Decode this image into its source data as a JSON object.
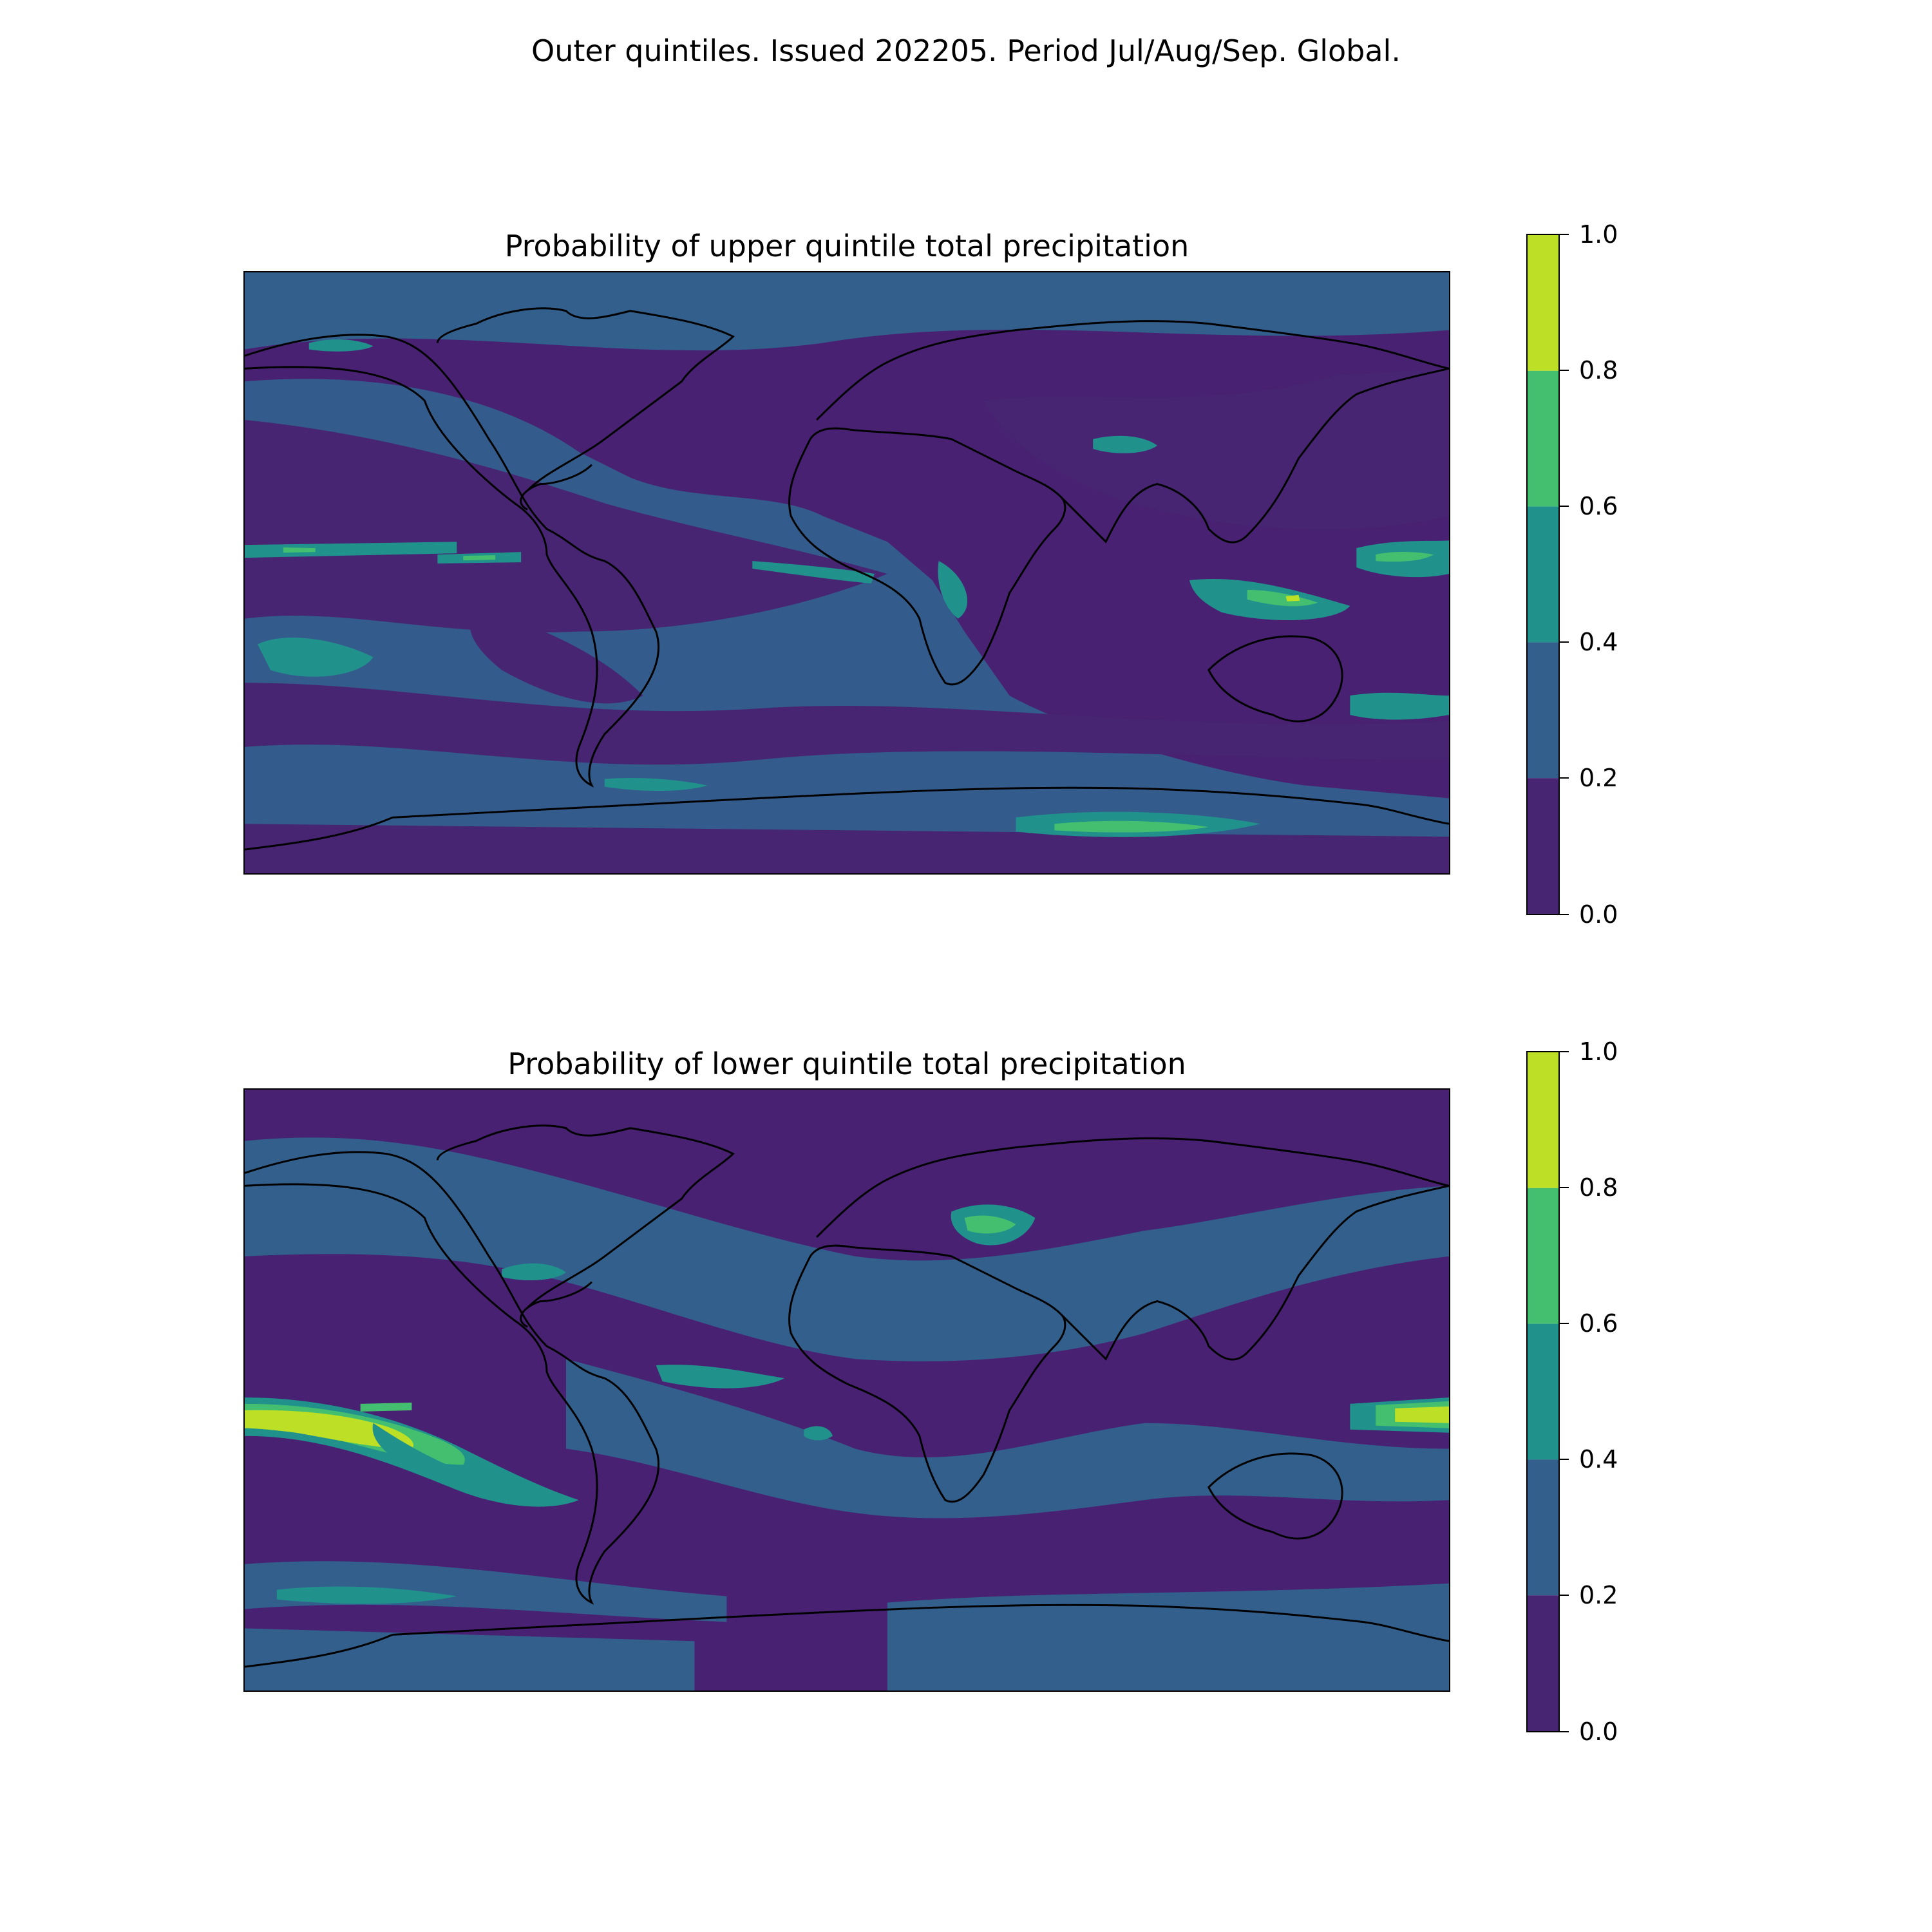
{
  "figure_title": "Outer quintiles. Issued 202205. Period Jul/Aug/Sep. Global.",
  "panels": [
    {
      "title": "Probability of upper quintile total precipitation",
      "colorbar": {
        "ticks": [
          "1.0",
          "0.8",
          "0.6",
          "0.4",
          "0.2",
          "0.0"
        ]
      }
    },
    {
      "title": "Probability of lower quintile total precipitation",
      "colorbar": {
        "ticks": [
          "1.0",
          "0.8",
          "0.6",
          "0.4",
          "0.2",
          "0.0"
        ]
      }
    }
  ],
  "chart_data": {
    "type": "heatmap",
    "projection": "plate carree, global",
    "levels": [
      0.0,
      0.2,
      0.4,
      0.6,
      0.8,
      1.0
    ],
    "level_colors": [
      "#472573",
      "#335f8c",
      "#21918c",
      "#44bf70",
      "#bddf26"
    ],
    "colorbar_range": [
      0.0,
      1.0
    ],
    "maps": [
      {
        "title": "Probability of upper quintile total precipitation",
        "variable": "upper quintile total precipitation probability"
      },
      {
        "title": "Probability of lower quintile total precipitation",
        "variable": "lower quintile total precipitation probability"
      }
    ]
  }
}
